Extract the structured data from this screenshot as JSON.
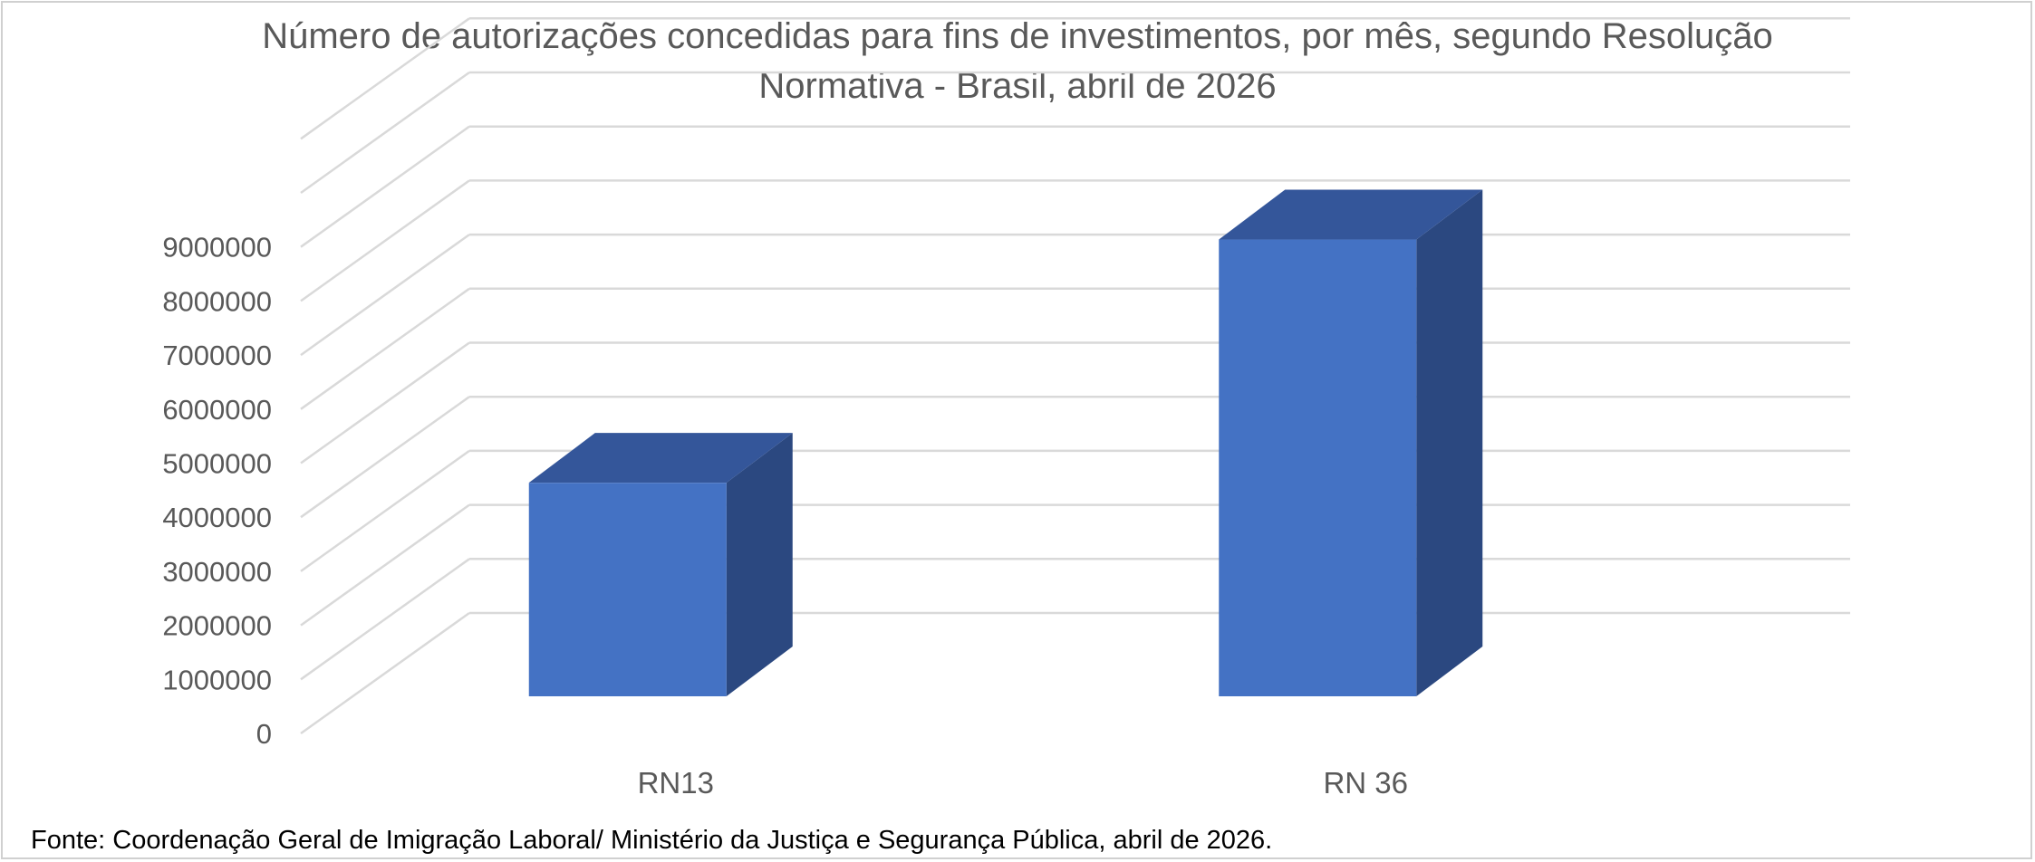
{
  "chart_data": {
    "type": "bar",
    "style": "3d-column",
    "title_line1": "Número de autorizações concedidas para fins de investimentos, por mês, segundo Resolução",
    "title_line2": "Normativa - Brasil, abril de 2026",
    "categories": [
      "RN13",
      "RN 36"
    ],
    "values": [
      3950000,
      8450000
    ],
    "ylim": [
      0,
      9000000
    ],
    "yticks": [
      "0",
      "1000000",
      "2000000",
      "3000000",
      "4000000",
      "5000000",
      "6000000",
      "7000000",
      "8000000",
      "9000000"
    ],
    "grid": true,
    "legend": "none",
    "colors": {
      "front": "#4472c4",
      "top": "#34569a",
      "side": "#2b4880",
      "grid": "#d9d9d9"
    }
  },
  "source_note": "Fonte: Coordenação Geral de Imigração Laboral/ Ministério da Justiça e Segurança Pública, abril de 2026."
}
